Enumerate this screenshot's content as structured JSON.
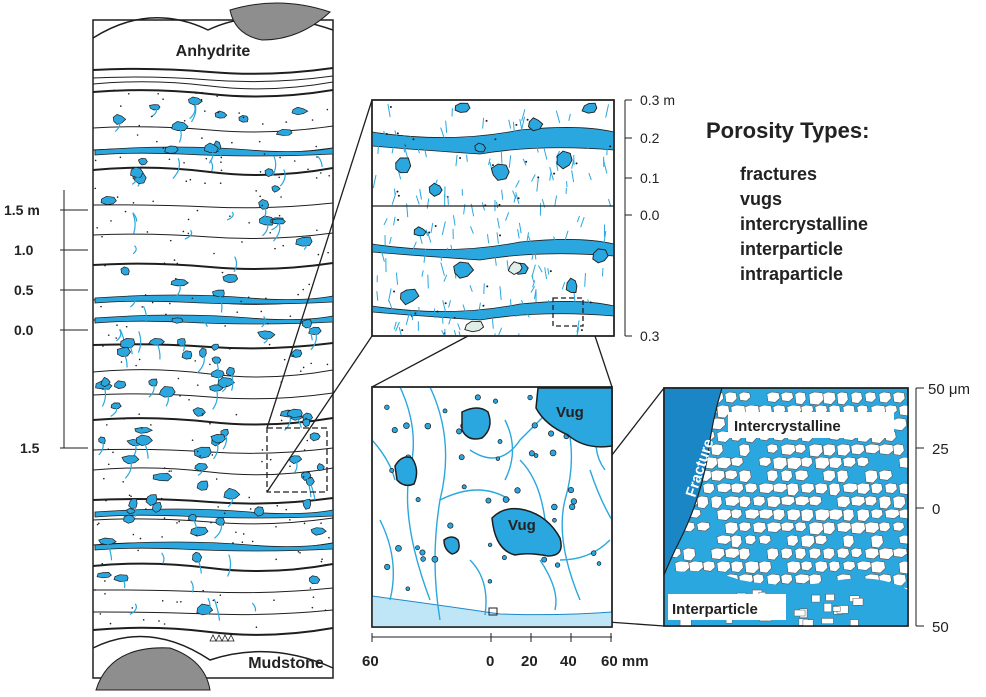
{
  "core": {
    "top_label": "Anhydrite",
    "bottom_label": "Mudstone",
    "scale_ticks": [
      "1.5 m",
      "1.0",
      "0.5",
      "0.0",
      "1.5"
    ]
  },
  "panel_top": {
    "scale_ticks": [
      "0.3 m",
      "0.2",
      "0.1",
      "0.0",
      "0.3"
    ]
  },
  "panel_mid": {
    "vug_labels": [
      "Vug",
      "Vug"
    ],
    "x_ticks": [
      "60",
      "0",
      "20",
      "40",
      "60 mm"
    ]
  },
  "panel_right": {
    "labels": {
      "fracture": "Fracture",
      "intercrystalline": "Intercrystalline",
      "interparticle": "Interparticle"
    },
    "scale_ticks": [
      "50 μm",
      "25",
      "0",
      "50"
    ]
  },
  "legend": {
    "title": "Porosity Types:",
    "items": [
      "fractures",
      "vugs",
      "intercrystalline",
      "interparticle",
      "intraparticle"
    ]
  },
  "colors": {
    "pore_blue": "#2aa7de",
    "dark_blue": "#1b86c5",
    "light_blue": "#bfe6f7",
    "line": "#1e1e1e"
  }
}
